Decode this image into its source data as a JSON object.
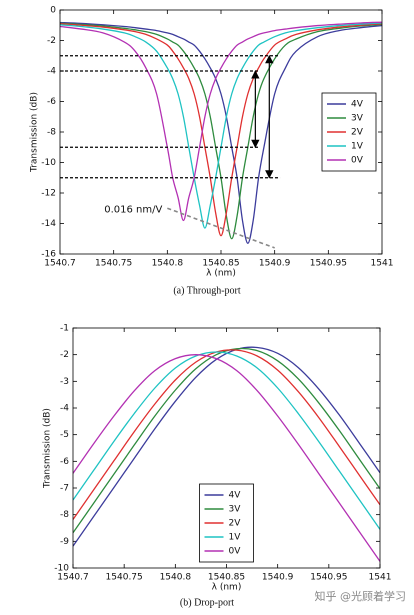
{
  "chart_data": [
    {
      "type": "line",
      "caption": "(a) Through-port",
      "x_label": "λ (nm)",
      "y_label": "Transmission (dB)",
      "x": [
        1540.7,
        1540.72,
        1540.74,
        1540.76,
        1540.77,
        1540.78,
        1540.79,
        1540.8,
        1540.805,
        1540.81,
        1540.815,
        1540.82,
        1540.825,
        1540.83,
        1540.835,
        1540.84,
        1540.845,
        1540.85,
        1540.855,
        1540.86,
        1540.865,
        1540.87,
        1540.875,
        1540.88,
        1540.885,
        1540.89,
        1540.9,
        1540.91,
        1540.92,
        1540.94,
        1540.96,
        1540.98,
        1541
      ],
      "xlim": [
        1540.7,
        1541
      ],
      "xticks": [
        1540.7,
        1540.75,
        1540.8,
        1540.85,
        1540.9,
        1540.95,
        1541
      ],
      "ylim": [
        -16,
        0
      ],
      "yticks": [
        0,
        -2,
        -4,
        -6,
        -8,
        -10,
        -12,
        -14,
        -16
      ],
      "legend": "center right",
      "series": [
        {
          "name": "4V",
          "color": "#3c3c9c",
          "values": [
            -0.82,
            -0.88,
            -0.97,
            -1.08,
            -1.16,
            -1.25,
            -1.35,
            -1.5,
            -1.6,
            -1.75,
            -1.9,
            -2.1,
            -2.3,
            -2.7,
            -3.2,
            -3.8,
            -4.5,
            -5.5,
            -7,
            -9,
            -11,
            -13.8,
            -15.3,
            -13.8,
            -11,
            -9,
            -5.5,
            -3.8,
            -2.7,
            -1.75,
            -1.35,
            -1.16,
            -1.02
          ]
        },
        {
          "name": "3V",
          "color": "#2e8b3e",
          "values": [
            -0.87,
            -0.95,
            -1.05,
            -1.2,
            -1.3,
            -1.42,
            -1.6,
            -1.9,
            -2.1,
            -2.3,
            -2.7,
            -3.2,
            -3.8,
            -4.5,
            -5.5,
            -7,
            -9,
            -11,
            -13.5,
            -15,
            -13.5,
            -11,
            -9,
            -7,
            -5.5,
            -4.5,
            -3.2,
            -2.3,
            -1.9,
            -1.42,
            -1.2,
            -1.05,
            -0.95
          ]
        },
        {
          "name": "2V",
          "color": "#e03030",
          "values": [
            -0.9,
            -1,
            -1.12,
            -1.3,
            -1.42,
            -1.6,
            -1.9,
            -2.3,
            -2.7,
            -3.2,
            -3.8,
            -4.5,
            -5.5,
            -7,
            -9,
            -11,
            -13.3,
            -14.8,
            -13.3,
            -11,
            -9,
            -7,
            -5.5,
            -4.5,
            -3.8,
            -3.2,
            -2.3,
            -1.9,
            -1.6,
            -1.3,
            -1.12,
            -1,
            -0.9
          ]
        },
        {
          "name": "1V",
          "color": "#1fc3c3",
          "values": [
            -0.97,
            -1.08,
            -1.25,
            -1.5,
            -1.75,
            -2.1,
            -2.7,
            -3.8,
            -4.5,
            -5.5,
            -7,
            -9,
            -11,
            -12.8,
            -14.3,
            -12.8,
            -11,
            -9,
            -7,
            -5.5,
            -4.5,
            -3.8,
            -3.2,
            -2.7,
            -2.3,
            -2.1,
            -1.75,
            -1.5,
            -1.35,
            -1.16,
            -1.02,
            -0.93,
            -0.85
          ]
        },
        {
          "name": "0V",
          "color": "#b331b3",
          "values": [
            -1.08,
            -1.25,
            -1.5,
            -2.1,
            -2.7,
            -3.8,
            -5.5,
            -9,
            -11,
            -12.3,
            -13.8,
            -12.3,
            -11,
            -9,
            -7,
            -5.5,
            -4.5,
            -3.8,
            -3.2,
            -2.7,
            -2.3,
            -2.1,
            -1.9,
            -1.75,
            -1.6,
            -1.5,
            -1.35,
            -1.25,
            -1.16,
            -1.02,
            -0.93,
            -0.85,
            -0.8
          ]
        }
      ],
      "reference_lines": [
        {
          "y": -3,
          "x": [
            1540.7,
            1540.905
          ]
        },
        {
          "y": -4,
          "x": [
            1540.7,
            1540.885
          ]
        },
        {
          "y": -9,
          "x": [
            1540.7,
            1540.885
          ]
        },
        {
          "y": -11,
          "x": [
            1540.7,
            1540.905
          ]
        }
      ],
      "arrows": [
        {
          "x": 1540.895,
          "y": [
            -3,
            -11
          ]
        },
        {
          "x": 1540.882,
          "y": [
            -4,
            -9
          ]
        }
      ],
      "annotation": {
        "text": "0.016 nm/V",
        "x": [
          1540.8,
          1540.9
        ],
        "y": [
          -13,
          -15.6
        ]
      }
    },
    {
      "type": "line",
      "caption": "(b) Drop-port",
      "x_label": "λ (nm)",
      "y_label": "Transmission (dB)",
      "x": [
        1540.7,
        1540.72,
        1540.74,
        1540.76,
        1540.78,
        1540.8,
        1540.82,
        1540.84,
        1540.86,
        1540.88,
        1540.9,
        1540.92,
        1540.94,
        1540.96,
        1540.98,
        1541
      ],
      "xlim": [
        1540.7,
        1541
      ],
      "xticks": [
        1540.7,
        1540.75,
        1540.8,
        1540.85,
        1540.9,
        1540.95,
        1541
      ],
      "ylim": [
        -10,
        -1
      ],
      "yticks": [
        -1,
        -2,
        -3,
        -4,
        -5,
        -6,
        -7,
        -8,
        -9,
        -10
      ],
      "legend": "lower center",
      "series": [
        {
          "name": "4V",
          "color": "#3c3c9c",
          "values": [
            -9.18,
            -8.08,
            -6.98,
            -5.88,
            -4.78,
            -3.75,
            -2.85,
            -2.18,
            -1.8,
            -1.73,
            -1.95,
            -2.48,
            -3.28,
            -4.25,
            -5.33,
            -6.43
          ]
        },
        {
          "name": "3V",
          "color": "#2e8b3e",
          "values": [
            -8.68,
            -7.58,
            -6.48,
            -5.38,
            -4.3,
            -3.33,
            -2.53,
            -2,
            -1.78,
            -1.85,
            -2.23,
            -2.9,
            -3.8,
            -4.83,
            -5.93,
            -7.03
          ]
        },
        {
          "name": "2V",
          "color": "#e03030",
          "values": [
            -8.18,
            -7.08,
            -5.98,
            -4.88,
            -3.85,
            -2.95,
            -2.28,
            -1.9,
            -1.83,
            -2.05,
            -2.58,
            -3.38,
            -4.35,
            -5.43,
            -6.53,
            -7.63
          ]
        },
        {
          "name": "1V",
          "color": "#1fc3c3",
          "values": [
            -7.45,
            -6.35,
            -5.25,
            -4.2,
            -3.25,
            -2.5,
            -2.05,
            -1.9,
            -2.05,
            -2.5,
            -3.25,
            -4.2,
            -5.25,
            -6.35,
            -7.45,
            -8.55
          ]
        },
        {
          "name": "0V",
          "color": "#b331b3",
          "values": [
            -6.45,
            -5.35,
            -4.3,
            -3.35,
            -2.6,
            -2.15,
            -2,
            -2.15,
            -2.6,
            -3.35,
            -4.3,
            -5.35,
            -6.45,
            -7.55,
            -8.65,
            -9.75
          ]
        }
      ]
    }
  ],
  "watermark": "知乎 @光顾着学习"
}
